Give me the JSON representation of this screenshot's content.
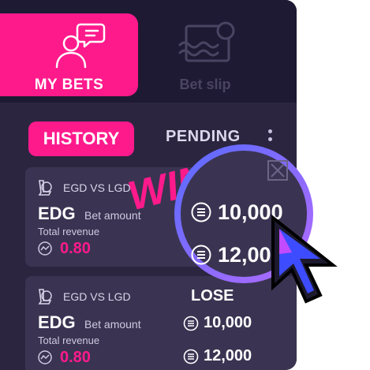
{
  "nav": {
    "my_bets_label": "MY BETS",
    "bet_slip_label": "Bet slip"
  },
  "segments": {
    "history_label": "HISTORY",
    "pending_label": "PENDING"
  },
  "overlay": {
    "win_label": "WIN",
    "magnified_bet_amount": "10,000",
    "magnified_revenue": "12,000"
  },
  "bets": [
    {
      "match": "EGD VS LGD",
      "team": "EDG",
      "bet_amount_label": "Bet amount",
      "total_revenue_label": "Total revenue",
      "odds": "0.80",
      "bet_amount": "10,000",
      "revenue": "12,000",
      "result": "WIN"
    },
    {
      "match": "EGD VS LGD",
      "team": "EDG",
      "bet_amount_label": "Bet amount",
      "total_revenue_label": "Total revenue",
      "odds": "0.80",
      "bet_amount": "10,000",
      "revenue": "12,000",
      "result": "LOSE"
    }
  ],
  "colors": {
    "accent": "#ff1a8c",
    "panel": "#2b2540",
    "card": "#3a3452",
    "topbar": "#1f1a33",
    "magnifier_ring": "#8a7bff"
  }
}
